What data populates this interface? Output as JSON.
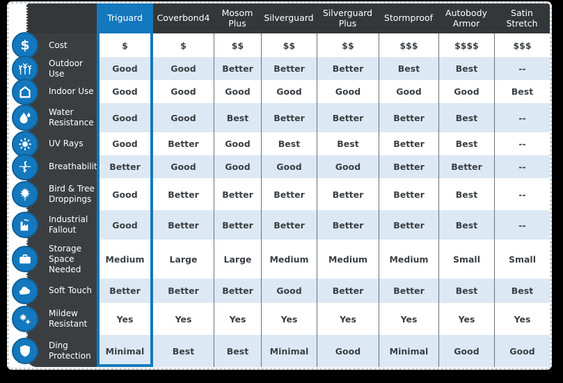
{
  "colors": {
    "accent_blue": "#1378BD",
    "header_bg": "#34373A",
    "sidebar_bg": "#3B3E40",
    "row_alt_bg": "#DCE9F4",
    "row_bg": "#FFFFFF",
    "divider": "#64727C",
    "cell_text": "#3A3F44",
    "header_text": "#FFFFFF",
    "page_bg": "#000000"
  },
  "icon_glyphs": {
    "dollar-icon": "$"
  },
  "chart_data": {
    "type": "table",
    "legend_position": "none",
    "columns": [
      {
        "label": "Triguard",
        "selected": true
      },
      {
        "label": "Coverbond4",
        "selected": false
      },
      {
        "label": "Mosom Plus",
        "selected": false
      },
      {
        "label": "Silverguard",
        "selected": false
      },
      {
        "label": "Silverguard Plus",
        "selected": false
      },
      {
        "label": "Stormproof",
        "selected": false
      },
      {
        "label": "Autobody Armor",
        "selected": false
      },
      {
        "label": "Satin Stretch",
        "selected": false
      }
    ],
    "rows": [
      {
        "feature": "Cost",
        "icon": "dollar-icon",
        "values": [
          "$",
          "$",
          "$$",
          "$$",
          "$$",
          "$$$",
          "$$$$",
          "$$$"
        ]
      },
      {
        "feature": "Outdoor Use",
        "icon": "trees-icon",
        "values": [
          "Good",
          "Good",
          "Better",
          "Better",
          "Better",
          "Best",
          "Best",
          "--"
        ]
      },
      {
        "feature": "Indoor Use",
        "icon": "house-icon",
        "values": [
          "Good",
          "Good",
          "Good",
          "Good",
          "Good",
          "Good",
          "Good",
          "Best"
        ]
      },
      {
        "feature": "Water Resistance",
        "icon": "water-drops-icon",
        "values": [
          "Good",
          "Good",
          "Best",
          "Better",
          "Better",
          "Better",
          "Best",
          "--"
        ]
      },
      {
        "feature": "UV Rays",
        "icon": "sun-icon",
        "values": [
          "Good",
          "Better",
          "Good",
          "Best",
          "Best",
          "Better",
          "Best",
          "--"
        ]
      },
      {
        "feature": "Breathability",
        "icon": "airflow-icon",
        "values": [
          "Better",
          "Good",
          "Good",
          "Good",
          "Good",
          "Better",
          "Better",
          "--"
        ]
      },
      {
        "feature": "Bird & Tree Droppings",
        "icon": "maple-leaf-icon",
        "values": [
          "Good",
          "Better",
          "Better",
          "Better",
          "Better",
          "Better",
          "Best",
          "--"
        ]
      },
      {
        "feature": "Industrial Fallout",
        "icon": "factory-icon",
        "values": [
          "Good",
          "Better",
          "Better",
          "Better",
          "Better",
          "Better",
          "Best",
          "--"
        ]
      },
      {
        "feature": "Storage Space Needed",
        "icon": "suitcase-icon",
        "values": [
          "Medium",
          "Large",
          "Large",
          "Medium",
          "Medium",
          "Medium",
          "Small",
          "Small"
        ]
      },
      {
        "feature": "Soft Touch",
        "icon": "cloud-icon",
        "values": [
          "Better",
          "Better",
          "Better",
          "Good",
          "Better",
          "Better",
          "Best",
          "Best"
        ]
      },
      {
        "feature": "Mildew Resistant",
        "icon": "spores-icon",
        "values": [
          "Yes",
          "Yes",
          "Yes",
          "Yes",
          "Yes",
          "Yes",
          "Yes",
          "Yes"
        ]
      },
      {
        "feature": "Ding Protection",
        "icon": "shield-icon",
        "values": [
          "Minimal",
          "Best",
          "Best",
          "Minimal",
          "Good",
          "Minimal",
          "Good",
          "Good"
        ]
      }
    ]
  }
}
